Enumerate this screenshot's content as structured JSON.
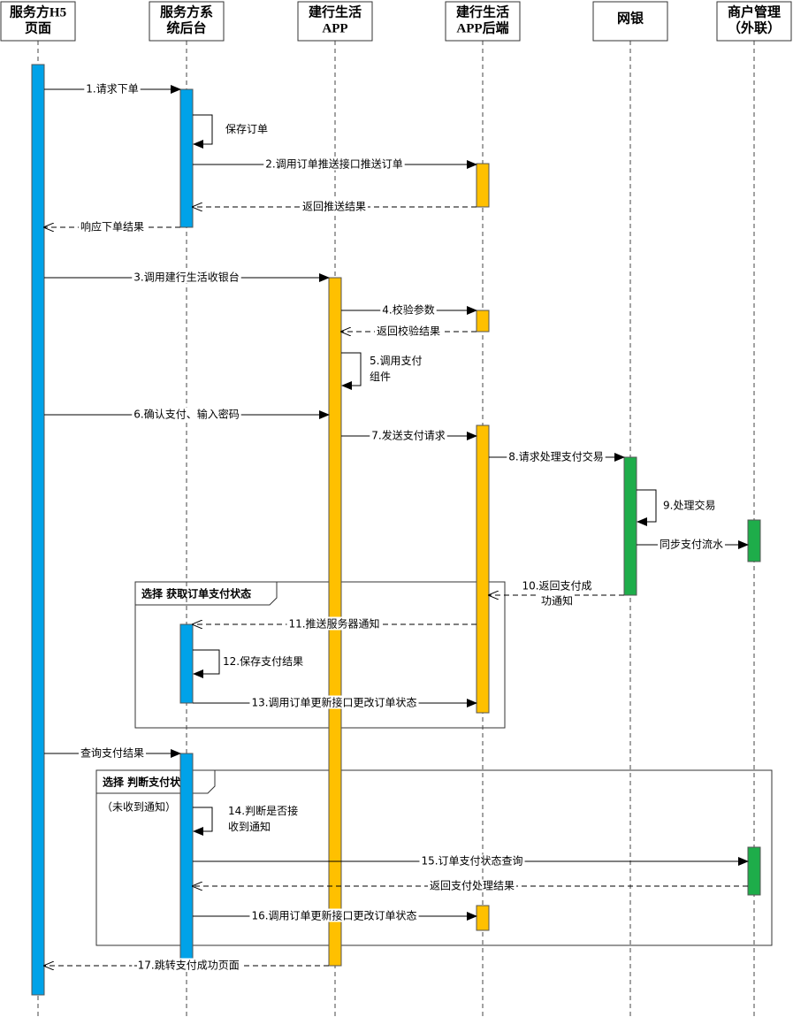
{
  "participants": [
    {
      "lines": [
        "服务方H5",
        "页面"
      ]
    },
    {
      "lines": [
        "服务方系",
        "统后台"
      ]
    },
    {
      "lines": [
        "建行生活",
        "APP"
      ]
    },
    {
      "lines": [
        "建行生活",
        "APP后端"
      ]
    },
    {
      "lines": [
        "网银"
      ]
    },
    {
      "lines": [
        "商户管理",
        "（外联）"
      ]
    }
  ],
  "messages": [
    {
      "lines": [
        "1.请求下单"
      ]
    },
    {
      "lines": [
        "保存订单"
      ]
    },
    {
      "lines": [
        "2.调用订单推送接口推送订单"
      ]
    },
    {
      "lines": [
        "返回推送结果"
      ]
    },
    {
      "lines": [
        "响应下单结果"
      ]
    },
    {
      "lines": [
        "3.调用建行生活收银台"
      ]
    },
    {
      "lines": [
        "4.校验参数"
      ]
    },
    {
      "lines": [
        "返回校验结果"
      ]
    },
    {
      "lines": [
        "5.调用支付",
        "组件"
      ]
    },
    {
      "lines": [
        "6.确认支付、输入密码"
      ]
    },
    {
      "lines": [
        "7.发送支付请求"
      ]
    },
    {
      "lines": [
        "8.请求处理支付交易"
      ]
    },
    {
      "lines": [
        "9.处理交易"
      ]
    },
    {
      "lines": [
        "同步支付流水"
      ]
    },
    {
      "lines": [
        "10.返回支付成",
        "功通知"
      ]
    },
    {
      "lines": [
        "11.推送服务器通知"
      ]
    },
    {
      "lines": [
        "12.保存支付结果"
      ]
    },
    {
      "lines": [
        "13.调用订单更新接口更改订单状态"
      ]
    },
    {
      "lines": [
        "查询支付结果"
      ]
    },
    {
      "lines": [
        "14.判断是否接",
        "收到通知"
      ]
    },
    {
      "lines": [
        "15.订单支付状态查询"
      ]
    },
    {
      "lines": [
        "返回支付处理结果"
      ]
    },
    {
      "lines": [
        "16.调用订单更新接口更改订单状态"
      ]
    },
    {
      "lines": [
        "-17.跳转支付成功页面"
      ]
    }
  ],
  "fragments": [
    {
      "label": "选择  获取订单支付状态"
    },
    {
      "label": "选择  判断支付状态",
      "guard": "（未收到通知）"
    }
  ]
}
